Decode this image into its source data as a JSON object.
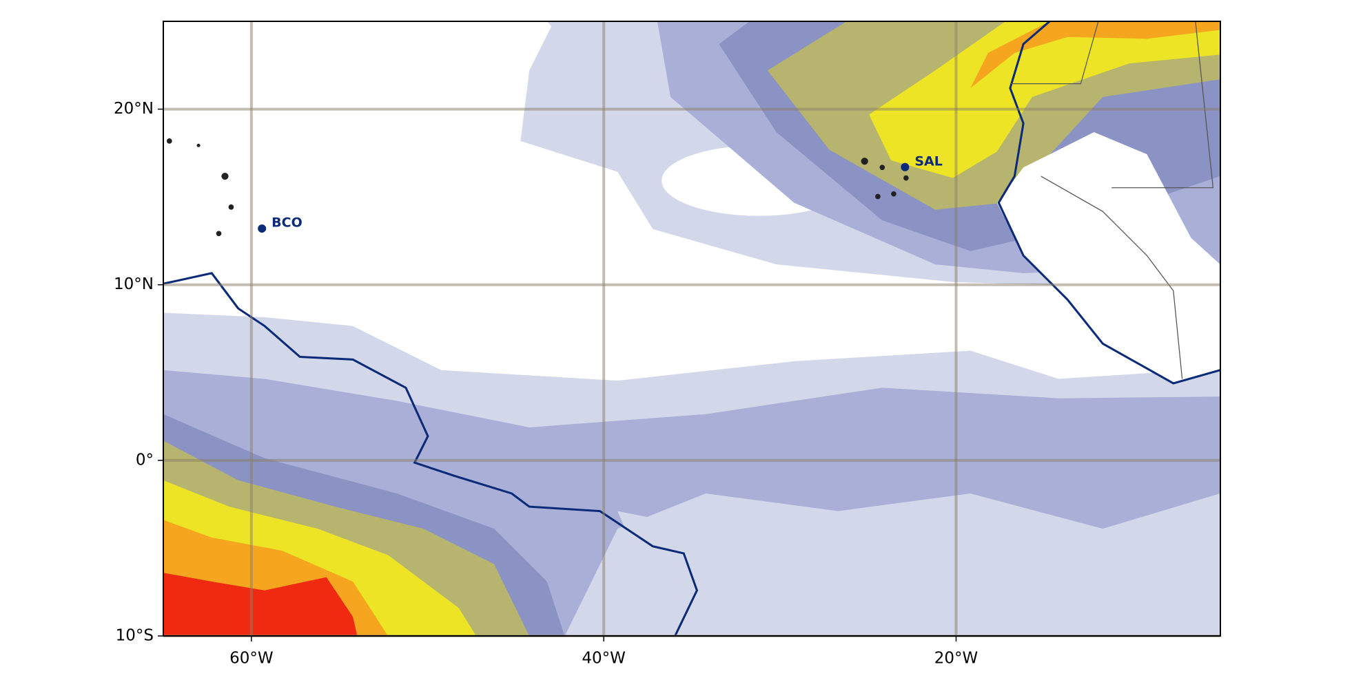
{
  "map": {
    "xlim": [
      -65,
      -5
    ],
    "ylim": [
      -10,
      25
    ],
    "xticks": [
      {
        "value": -60,
        "label": "60°W"
      },
      {
        "value": -40,
        "label": "40°W"
      },
      {
        "value": -20,
        "label": "20°W"
      }
    ],
    "yticks": [
      {
        "value": 20,
        "label": "20°N"
      },
      {
        "value": 10,
        "label": "10°N"
      },
      {
        "value": 0,
        "label": "0°"
      },
      {
        "value": -10,
        "label": "10°S"
      }
    ],
    "stations": [
      {
        "name": "BCO",
        "lon": -59.4,
        "lat": 13.2
      },
      {
        "name": "SAL",
        "lon": -22.9,
        "lat": 16.7
      }
    ]
  }
}
